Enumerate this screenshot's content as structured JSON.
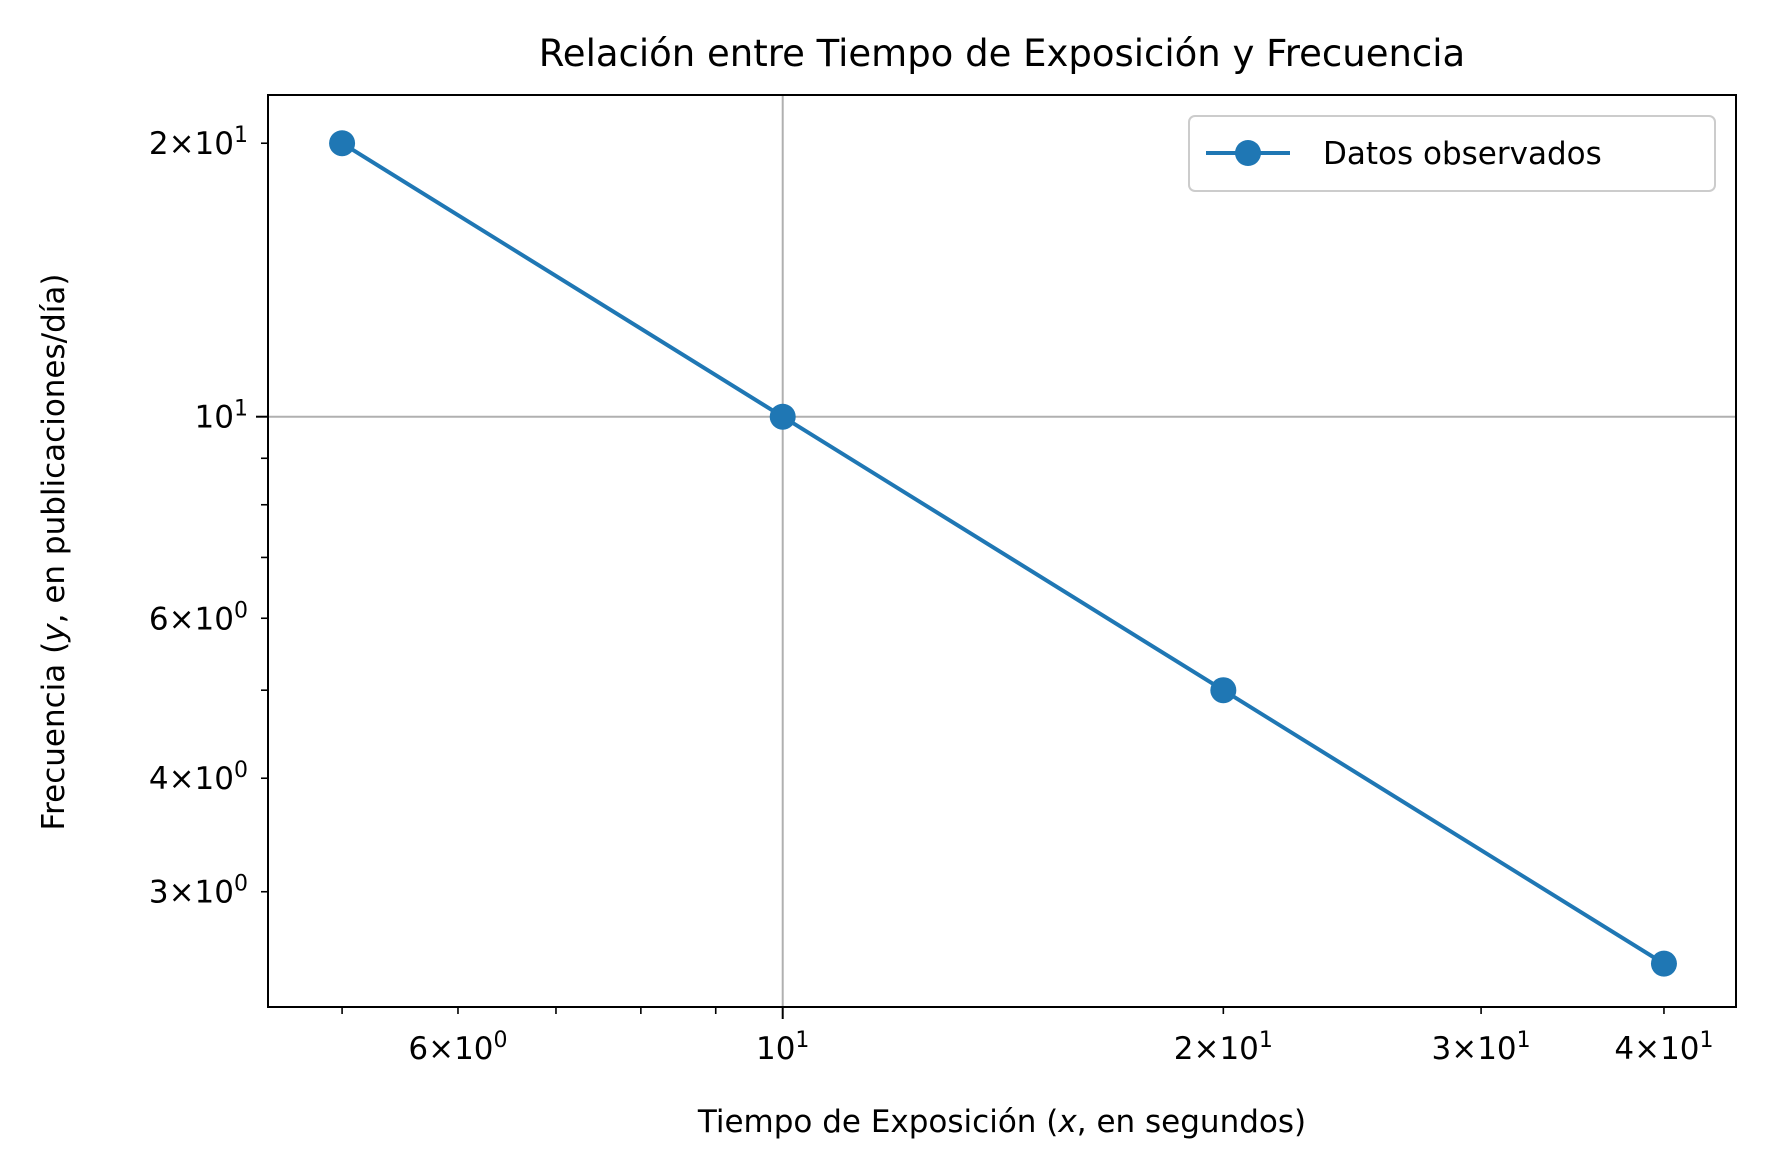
{
  "chart_data": {
    "type": "line",
    "title": "Relación entre Tiempo de Exposición y Frecuencia",
    "xlabel": "Tiempo de Exposición (x, en segundos)",
    "ylabel": "Frecuencia (y, en publicaciones/día)",
    "xscale": "log",
    "yscale": "log",
    "xlim": [
      4.45,
      44.8
    ],
    "ylim": [
      2.24,
      22.6
    ],
    "grid": "major only",
    "legend": "top-right",
    "x_ticks": [
      {
        "value": 6,
        "mant": "6",
        "exp": "0"
      },
      {
        "value": 10,
        "mant": "",
        "exp": "1"
      },
      {
        "value": 20,
        "mant": "2",
        "exp": "1"
      },
      {
        "value": 30,
        "mant": "3",
        "exp": "1"
      },
      {
        "value": 40,
        "mant": "4",
        "exp": "1"
      }
    ],
    "y_ticks": [
      {
        "value": 3,
        "mant": "3",
        "exp": "0"
      },
      {
        "value": 4,
        "mant": "4",
        "exp": "0"
      },
      {
        "value": 6,
        "mant": "6",
        "exp": "0"
      },
      {
        "value": 10,
        "mant": "",
        "exp": "1"
      },
      {
        "value": 20,
        "mant": "2",
        "exp": "1"
      }
    ],
    "series": [
      {
        "name": "Datos observados",
        "color": "#1f77b4",
        "marker": "circle",
        "x": [
          5,
          10,
          20,
          40
        ],
        "y": [
          20,
          10,
          5,
          2.5
        ]
      }
    ]
  }
}
